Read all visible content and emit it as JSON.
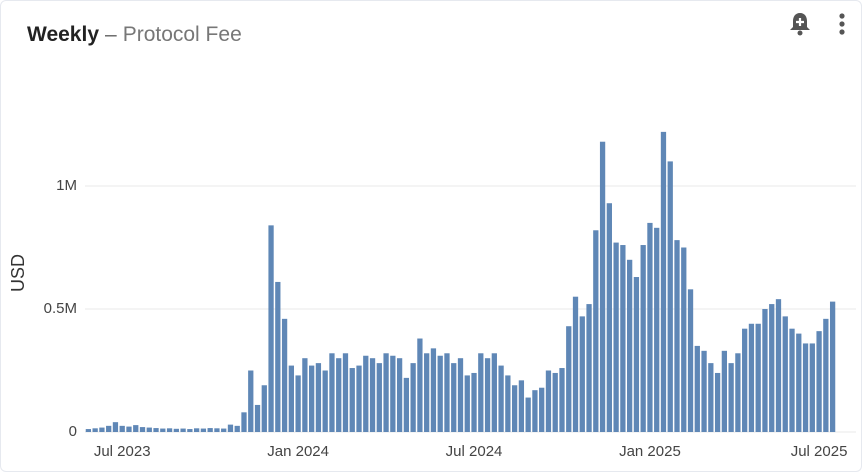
{
  "header": {
    "title": "Weekly",
    "separator": "–",
    "subtitle": "Protocol Fee"
  },
  "chart_data": {
    "type": "bar",
    "ylabel": "USD",
    "color": "#5f87b6",
    "grid": true,
    "ylim": [
      0,
      1250000
    ],
    "yticks": [
      0,
      {
        "value": 500000,
        "label": "0.5M"
      },
      {
        "value": 1000000,
        "label": "1M"
      }
    ],
    "categories": [
      null,
      null,
      null,
      null,
      null,
      "Jul 2023",
      null,
      null,
      null,
      null,
      null,
      null,
      null,
      null,
      null,
      null,
      null,
      null,
      null,
      null,
      null,
      null,
      null,
      null,
      null,
      null,
      null,
      null,
      null,
      null,
      null,
      "Jan 2024",
      null,
      null,
      null,
      null,
      null,
      null,
      null,
      null,
      null,
      null,
      null,
      null,
      null,
      null,
      null,
      null,
      null,
      null,
      null,
      null,
      null,
      null,
      null,
      null,
      null,
      "Jul 2024",
      null,
      null,
      null,
      null,
      null,
      null,
      null,
      null,
      null,
      null,
      null,
      null,
      null,
      null,
      null,
      null,
      null,
      null,
      null,
      null,
      null,
      null,
      null,
      null,
      null,
      "Jan 2025",
      null,
      null,
      null,
      null,
      null,
      null,
      null,
      null,
      null,
      null,
      null,
      null,
      null,
      null,
      null,
      null,
      null,
      null,
      null,
      null,
      null,
      null,
      null,
      null,
      "Jul 2025",
      null,
      null
    ],
    "values": [
      12000,
      15000,
      18000,
      25000,
      40000,
      25000,
      22000,
      28000,
      20000,
      18000,
      16000,
      14000,
      15000,
      13000,
      14000,
      12000,
      15000,
      14000,
      16000,
      15000,
      14000,
      30000,
      25000,
      80000,
      250000,
      110000,
      190000,
      840000,
      610000,
      460000,
      270000,
      230000,
      300000,
      270000,
      280000,
      250000,
      320000,
      300000,
      320000,
      260000,
      270000,
      310000,
      300000,
      280000,
      320000,
      310000,
      300000,
      220000,
      280000,
      380000,
      320000,
      340000,
      310000,
      320000,
      280000,
      300000,
      230000,
      240000,
      320000,
      300000,
      320000,
      270000,
      230000,
      190000,
      210000,
      140000,
      170000,
      180000,
      250000,
      240000,
      260000,
      430000,
      550000,
      470000,
      520000,
      820000,
      1180000,
      930000,
      770000,
      760000,
      700000,
      630000,
      760000,
      850000,
      830000,
      1220000,
      1100000,
      780000,
      750000,
      580000,
      350000,
      330000,
      280000,
      240000,
      330000,
      280000,
      320000,
      420000,
      440000,
      440000,
      500000,
      520000,
      540000,
      470000,
      420000,
      400000,
      360000,
      360000,
      410000,
      460000,
      530000
    ]
  }
}
